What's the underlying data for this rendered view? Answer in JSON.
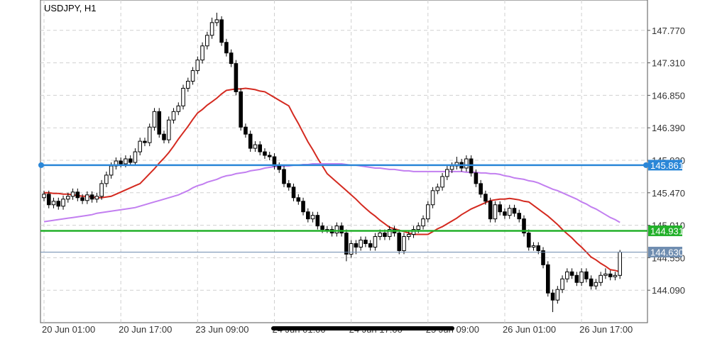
{
  "chart_data": {
    "type": "candlestick",
    "title": "USDJPY, H1",
    "categories": [
      "20 Jun 01:00",
      null,
      null,
      null,
      null,
      null,
      null,
      null,
      null,
      null,
      null,
      null,
      null,
      null,
      null,
      null,
      "20 Jun 17:00",
      null,
      null,
      null,
      null,
      null,
      null,
      null,
      null,
      null,
      null,
      null,
      null,
      null,
      null,
      null,
      "23 Jun 09:00",
      null,
      null,
      null,
      null,
      null,
      null,
      null,
      null,
      null,
      null,
      null,
      null,
      null,
      null,
      null,
      "24 Jun 01:00",
      null,
      null,
      null,
      null,
      null,
      null,
      null,
      null,
      null,
      null,
      null,
      null,
      null,
      null,
      null,
      "24 Jun 17:00",
      null,
      null,
      null,
      null,
      null,
      null,
      null,
      null,
      null,
      null,
      null,
      null,
      null,
      null,
      null,
      "25 Jun 09:00",
      null,
      null,
      null,
      null,
      null,
      null,
      null,
      null,
      null,
      null,
      null,
      null,
      null,
      null,
      null,
      "26 Jun 01:00",
      null,
      null,
      null,
      null,
      null,
      null,
      null,
      null,
      null,
      null,
      null,
      null,
      null,
      null,
      null,
      "26 Jun 17:00",
      null,
      null,
      null,
      null,
      null,
      null,
      null,
      null
    ],
    "open": [
      145.4,
      145.45,
      145.3,
      145.35,
      145.28,
      145.38,
      145.42,
      145.48,
      145.4,
      145.36,
      145.44,
      145.38,
      145.42,
      145.6,
      145.72,
      145.85,
      145.92,
      145.88,
      145.95,
      145.9,
      146.05,
      146.2,
      146.18,
      146.4,
      146.62,
      146.3,
      146.22,
      146.5,
      146.62,
      146.7,
      146.95,
      147.05,
      147.2,
      147.35,
      147.55,
      147.7,
      147.88,
      147.92,
      147.6,
      147.45,
      147.3,
      146.9,
      146.4,
      146.3,
      146.1,
      146.15,
      146.05,
      146.0,
      145.98,
      145.85,
      145.8,
      145.6,
      145.55,
      145.4,
      145.35,
      145.2,
      145.1,
      145.15,
      145.0,
      144.95,
      144.95,
      144.9,
      145.0,
      144.9,
      144.6,
      144.75,
      144.7,
      144.8,
      144.75,
      144.7,
      144.85,
      144.9,
      144.85,
      144.95,
      144.9,
      144.65,
      144.85,
      144.88,
      144.95,
      145.0,
      145.1,
      145.3,
      145.5,
      145.55,
      145.7,
      145.8,
      145.85,
      145.9,
      145.82,
      145.95,
      145.75,
      145.6,
      145.45,
      145.35,
      145.1,
      145.3,
      145.2,
      145.15,
      145.25,
      145.18,
      145.1,
      144.9,
      144.7,
      144.72,
      144.65,
      144.45,
      144.05,
      143.95,
      144.1,
      144.25,
      144.35,
      144.3,
      144.2,
      144.35,
      144.25,
      144.15,
      144.2,
      144.3,
      144.32,
      144.28,
      144.3
    ],
    "high": [
      145.5,
      145.5,
      145.4,
      145.4,
      145.43,
      145.47,
      145.53,
      145.53,
      145.45,
      145.49,
      145.49,
      145.47,
      145.65,
      145.77,
      145.9,
      145.97,
      145.97,
      146.0,
      146.0,
      146.1,
      146.25,
      146.25,
      146.45,
      146.67,
      146.67,
      146.35,
      146.55,
      146.67,
      146.75,
      147.0,
      147.1,
      147.25,
      147.4,
      147.6,
      147.75,
      147.95,
      148.02,
      147.97,
      147.65,
      147.5,
      147.35,
      146.95,
      146.45,
      146.35,
      146.2,
      146.2,
      146.1,
      146.05,
      146.03,
      145.9,
      145.85,
      145.65,
      145.6,
      145.45,
      145.4,
      145.25,
      145.2,
      145.2,
      145.05,
      145.0,
      145.0,
      145.05,
      145.05,
      144.95,
      144.8,
      144.8,
      144.85,
      144.85,
      144.8,
      144.9,
      144.95,
      144.95,
      145.0,
      145.0,
      144.95,
      144.9,
      144.93,
      145.0,
      145.05,
      145.15,
      145.35,
      145.55,
      145.6,
      145.75,
      145.85,
      145.9,
      145.98,
      145.95,
      146.0,
      146.0,
      145.8,
      145.65,
      145.5,
      145.4,
      145.35,
      145.35,
      145.25,
      145.3,
      145.3,
      145.23,
      145.15,
      144.95,
      144.77,
      144.77,
      144.7,
      144.5,
      144.1,
      144.15,
      144.3,
      144.4,
      144.4,
      144.35,
      144.4,
      144.4,
      144.3,
      144.25,
      144.35,
      144.4,
      144.37,
      144.35,
      144.66
    ],
    "low": [
      145.35,
      145.25,
      145.25,
      145.23,
      145.23,
      145.33,
      145.37,
      145.35,
      145.31,
      145.31,
      145.33,
      145.33,
      145.37,
      145.55,
      145.67,
      145.8,
      145.83,
      145.83,
      145.85,
      145.85,
      146.0,
      146.13,
      146.13,
      146.35,
      146.25,
      146.17,
      146.17,
      146.45,
      146.57,
      146.65,
      146.9,
      147.0,
      147.15,
      147.3,
      147.5,
      147.65,
      147.83,
      147.55,
      147.4,
      147.25,
      146.85,
      146.35,
      146.25,
      146.05,
      146.05,
      146.0,
      145.95,
      145.93,
      145.8,
      145.75,
      145.55,
      145.5,
      145.35,
      145.3,
      145.15,
      145.05,
      145.05,
      144.95,
      144.9,
      144.9,
      144.85,
      144.85,
      144.85,
      144.5,
      144.55,
      144.6,
      144.65,
      144.7,
      144.65,
      144.65,
      144.8,
      144.8,
      144.8,
      144.85,
      144.6,
      144.6,
      144.8,
      144.83,
      144.9,
      144.95,
      145.05,
      145.25,
      145.45,
      145.5,
      145.65,
      145.75,
      145.8,
      145.77,
      145.77,
      145.7,
      145.55,
      145.4,
      145.3,
      145.05,
      145.05,
      145.15,
      145.1,
      145.1,
      145.13,
      145.05,
      144.85,
      144.65,
      144.65,
      144.6,
      144.4,
      144.0,
      143.78,
      143.9,
      144.05,
      144.2,
      144.25,
      144.15,
      144.15,
      144.2,
      144.1,
      144.1,
      144.15,
      144.25,
      144.23,
      144.23,
      144.25
    ],
    "close": [
      145.45,
      145.3,
      145.35,
      145.28,
      145.38,
      145.42,
      145.48,
      145.4,
      145.36,
      145.44,
      145.38,
      145.42,
      145.6,
      145.72,
      145.85,
      145.92,
      145.88,
      145.95,
      145.9,
      146.05,
      146.2,
      146.18,
      146.4,
      146.62,
      146.3,
      146.22,
      146.5,
      146.62,
      146.7,
      146.95,
      147.05,
      147.2,
      147.35,
      147.55,
      147.7,
      147.88,
      147.92,
      147.6,
      147.45,
      147.3,
      146.9,
      146.4,
      146.3,
      146.1,
      146.15,
      146.05,
      146.0,
      145.98,
      145.85,
      145.8,
      145.6,
      145.55,
      145.4,
      145.35,
      145.2,
      145.1,
      145.15,
      145.0,
      144.95,
      144.95,
      144.9,
      145.0,
      144.9,
      144.6,
      144.75,
      144.7,
      144.8,
      144.75,
      144.7,
      144.85,
      144.9,
      144.85,
      144.95,
      144.9,
      144.65,
      144.85,
      144.88,
      144.95,
      145.0,
      145.1,
      145.3,
      145.5,
      145.55,
      145.7,
      145.8,
      145.85,
      145.9,
      145.82,
      145.95,
      145.75,
      145.6,
      145.45,
      145.35,
      145.1,
      145.3,
      145.2,
      145.15,
      145.25,
      145.18,
      145.1,
      144.9,
      144.7,
      144.72,
      144.65,
      144.45,
      144.05,
      143.95,
      144.1,
      144.25,
      144.35,
      144.3,
      144.2,
      144.35,
      144.25,
      144.15,
      144.2,
      144.3,
      144.32,
      144.28,
      144.3,
      144.63
    ],
    "color_up": "#ffffff",
    "color_down": "#000000",
    "overlays": [
      {
        "color": "#d42a20",
        "values": [
          145.47,
          145.47,
          145.46,
          145.46,
          145.45,
          145.45,
          145.44,
          145.43,
          145.42,
          145.42,
          145.41,
          145.4,
          145.4,
          145.41,
          145.42,
          145.45,
          145.48,
          145.51,
          145.54,
          145.57,
          145.6,
          145.67,
          145.74,
          145.81,
          145.89,
          145.96,
          146.04,
          146.13,
          146.23,
          146.32,
          146.41,
          146.51,
          146.6,
          146.65,
          146.71,
          146.76,
          146.81,
          146.87,
          146.92,
          146.93,
          146.94,
          146.94,
          146.95,
          146.94,
          146.93,
          146.91,
          146.9,
          146.86,
          146.82,
          146.78,
          146.74,
          146.7,
          146.57,
          146.45,
          146.32,
          146.19,
          146.08,
          145.96,
          145.85,
          145.74,
          145.68,
          145.62,
          145.56,
          145.5,
          145.44,
          145.38,
          145.31,
          145.25,
          145.19,
          145.14,
          145.08,
          145.03,
          144.98,
          144.96,
          144.94,
          144.92,
          144.9,
          144.88,
          144.88,
          144.88,
          144.88,
          144.92,
          144.96,
          144.99,
          145.03,
          145.07,
          145.11,
          145.16,
          145.2,
          145.24,
          145.27,
          145.3,
          145.33,
          145.36,
          145.37,
          145.38,
          145.38,
          145.39,
          145.38,
          145.37,
          145.35,
          145.34,
          145.29,
          145.24,
          145.19,
          145.14,
          145.08,
          145.02,
          144.95,
          144.89,
          144.83,
          144.76,
          144.7,
          144.63,
          144.56,
          144.52,
          144.47,
          144.43,
          144.38,
          144.37,
          144.35
        ]
      },
      {
        "color": "#c27ff0",
        "values": [
          145.06,
          145.07,
          145.08,
          145.09,
          145.1,
          145.11,
          145.12,
          145.13,
          145.14,
          145.15,
          145.16,
          145.18,
          145.19,
          145.2,
          145.21,
          145.22,
          145.23,
          145.24,
          145.25,
          145.26,
          145.28,
          145.3,
          145.32,
          145.34,
          145.36,
          145.38,
          145.4,
          145.42,
          145.44,
          145.47,
          145.5,
          145.54,
          145.57,
          145.59,
          145.62,
          145.64,
          145.66,
          145.69,
          145.71,
          145.72,
          145.74,
          145.75,
          145.76,
          145.78,
          145.79,
          145.8,
          145.82,
          145.83,
          145.84,
          145.84,
          145.85,
          145.85,
          145.86,
          145.86,
          145.87,
          145.87,
          145.88,
          145.88,
          145.88,
          145.88,
          145.88,
          145.88,
          145.88,
          145.87,
          145.86,
          145.86,
          145.85,
          145.84,
          145.83,
          145.82,
          145.82,
          145.81,
          145.8,
          145.8,
          145.79,
          145.78,
          145.78,
          145.77,
          145.77,
          145.77,
          145.77,
          145.77,
          145.77,
          145.77,
          145.77,
          145.77,
          145.77,
          145.77,
          145.76,
          145.76,
          145.76,
          145.75,
          145.75,
          145.74,
          145.74,
          145.73,
          145.71,
          145.7,
          145.68,
          145.67,
          145.66,
          145.64,
          145.63,
          145.61,
          145.58,
          145.55,
          145.52,
          145.5,
          145.47,
          145.44,
          145.41,
          145.38,
          145.34,
          145.31,
          145.27,
          145.24,
          145.2,
          145.16,
          145.12,
          145.09,
          145.05
        ]
      }
    ],
    "levels": [
      {
        "value": 145.861,
        "label": "145.861",
        "color": "#2b87d8"
      },
      {
        "value": 144.931,
        "label": "144.931",
        "color": "#22b02a"
      },
      {
        "value": 144.63,
        "label": "144.630",
        "color": "#6f8db0"
      }
    ],
    "ylim": [
      143.63,
      148.2
    ],
    "yticks": [
      {
        "value": 144.09,
        "label": "144.090"
      },
      {
        "value": 144.55,
        "label": "144.550"
      },
      {
        "value": 145.01,
        "label": "145.010"
      },
      {
        "value": 145.47,
        "label": "145.470"
      },
      {
        "value": 145.93,
        "label": "145.930"
      },
      {
        "value": 146.39,
        "label": "146.390"
      },
      {
        "value": 146.85,
        "label": "146.850"
      },
      {
        "value": 147.31,
        "label": "147.310"
      },
      {
        "value": 147.77,
        "label": "147.770"
      }
    ],
    "grid": true
  }
}
